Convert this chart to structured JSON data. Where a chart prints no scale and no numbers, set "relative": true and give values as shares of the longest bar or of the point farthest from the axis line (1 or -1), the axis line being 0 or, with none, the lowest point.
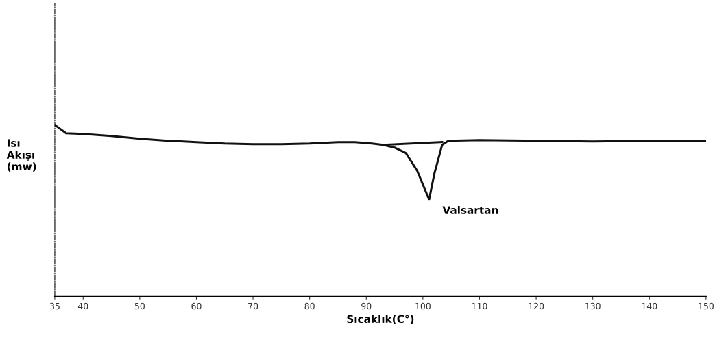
{
  "chart_data": {
    "type": "line",
    "relative": true,
    "xlabel": "Sıcaklık(C°)",
    "ylabel": "Isı\nAkışı\n(mw)",
    "xlim": [
      35,
      150
    ],
    "xticks": [
      35,
      40,
      50,
      60,
      70,
      80,
      90,
      100,
      110,
      120,
      130,
      140,
      150
    ],
    "tick_labels": "x",
    "grid": false,
    "legend": false,
    "marker": "none",
    "line_style": "solid",
    "series": [
      {
        "color": "#111111",
        "x": [
          35,
          37,
          40,
          45,
          50,
          55,
          60,
          65,
          70,
          75,
          80,
          85,
          88,
          91,
          93,
          95,
          97,
          99,
          101.1,
          102,
          103.4,
          104.5,
          110,
          120,
          130,
          140,
          150
        ],
        "values": [
          1.0,
          0.952,
          0.948,
          0.936,
          0.92,
          0.908,
          0.9,
          0.892,
          0.888,
          0.888,
          0.892,
          0.9,
          0.9,
          0.892,
          0.884,
          0.868,
          0.836,
          0.732,
          0.564,
          0.712,
          0.884,
          0.908,
          0.912,
          0.908,
          0.904,
          0.908,
          0.908
        ]
      },
      {
        "color": "#111111",
        "x": [
          93,
          103.4
        ],
        "values": [
          0.884,
          0.9
        ]
      }
    ],
    "annotations": [
      {
        "text": "Valsartan",
        "x": 101.1,
        "y": 0.564
      }
    ]
  }
}
